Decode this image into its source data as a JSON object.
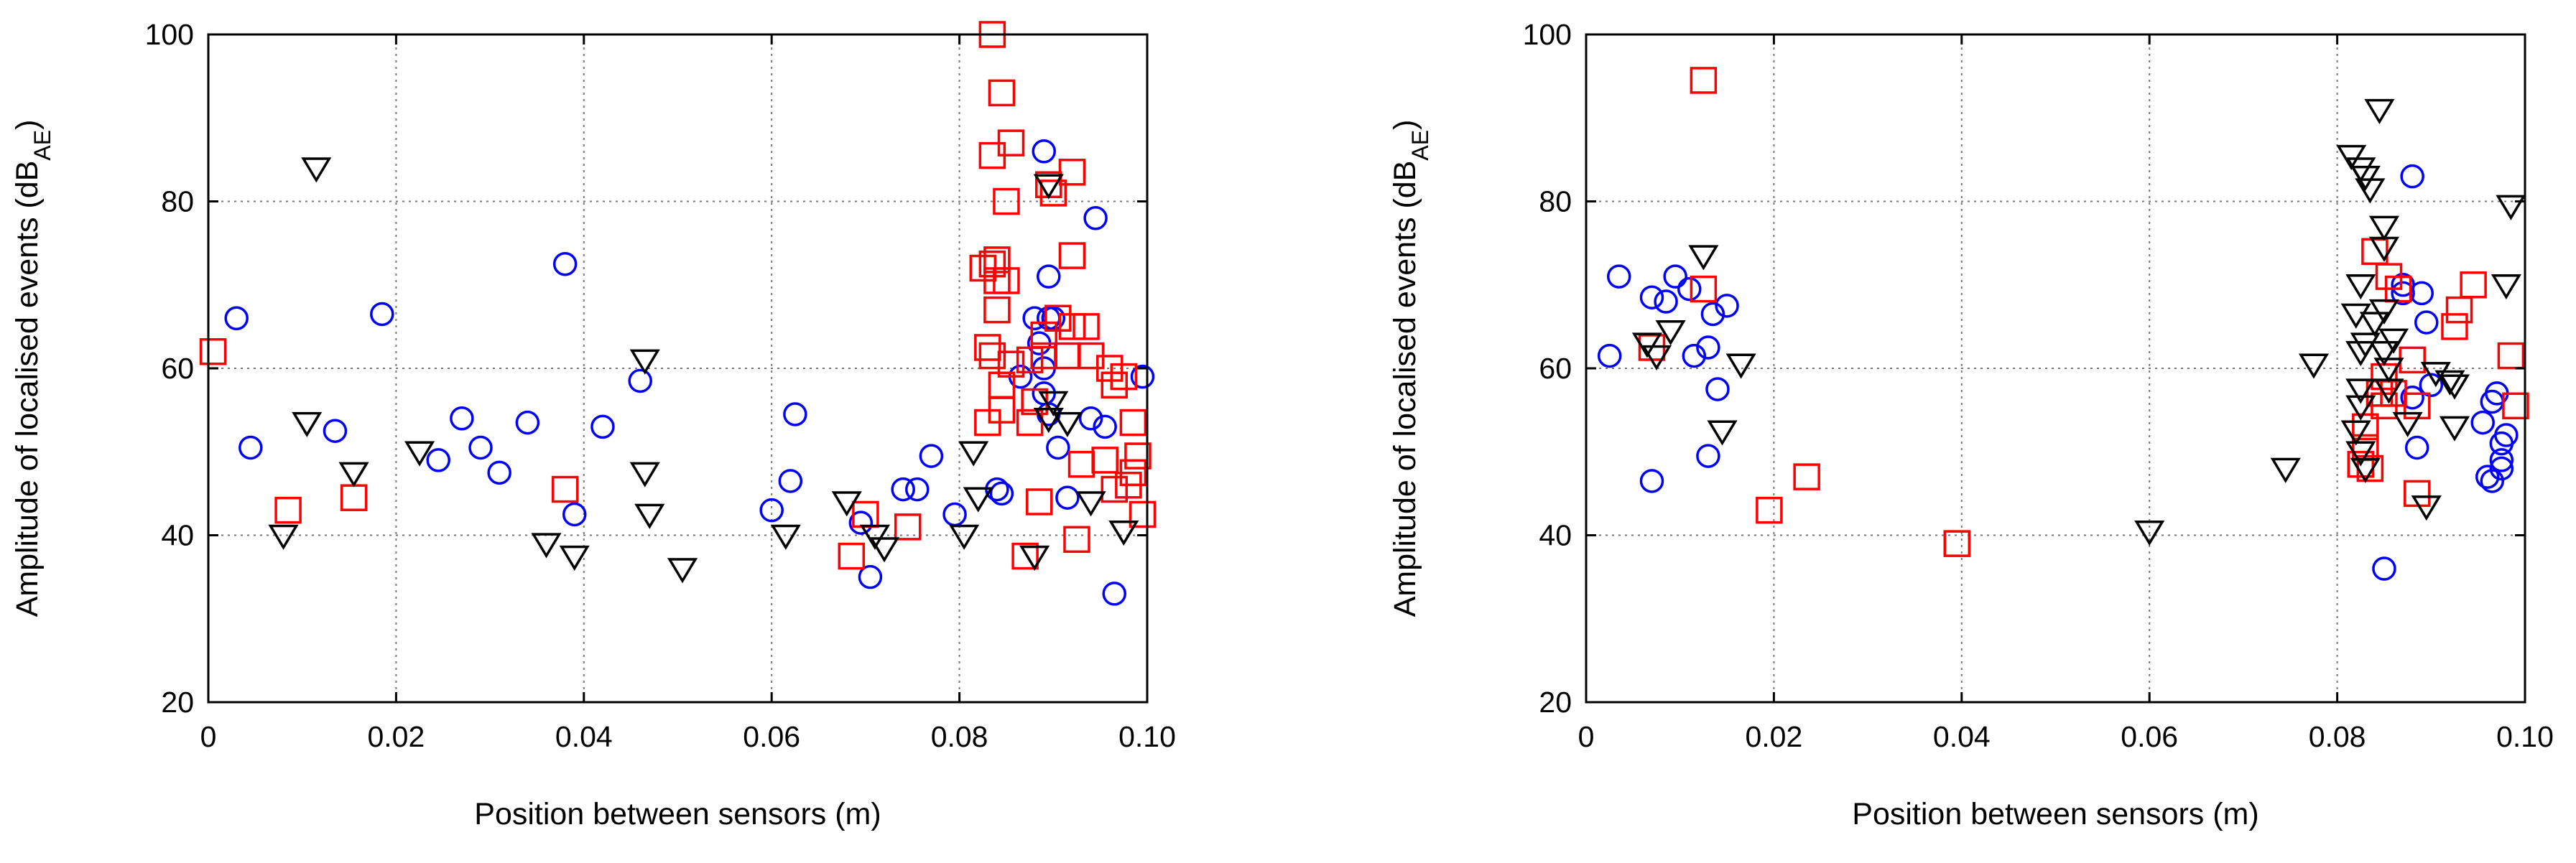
{
  "chart_data": [
    {
      "type": "scatter",
      "title": "",
      "xlabel": "Position between sensors (m)",
      "ylabel": {
        "main": "Amplitude of localised events (dB",
        "sub": "AE",
        "close": ")"
      },
      "xlim": [
        0,
        0.1
      ],
      "ylim": [
        20,
        100
      ],
      "xticks": [
        0,
        0.02,
        0.04,
        0.06,
        0.08,
        0.1
      ],
      "xtick_labels": [
        "0",
        "0.02",
        "0.04",
        "0.06",
        "0.08",
        "0.10"
      ],
      "yticks": [
        20,
        40,
        60,
        80,
        100
      ],
      "ytick_labels": [
        "20",
        "40",
        "60",
        "80",
        "100"
      ],
      "grid": true,
      "series": [
        {
          "name": "circles",
          "marker": "circle",
          "color": "#0000ff",
          "points": [
            [
              0.003,
              66
            ],
            [
              0.0045,
              50.5
            ],
            [
              0.0135,
              52.5
            ],
            [
              0.0185,
              66.5
            ],
            [
              0.0245,
              49
            ],
            [
              0.027,
              54
            ],
            [
              0.029,
              50.5
            ],
            [
              0.031,
              47.5
            ],
            [
              0.034,
              53.5
            ],
            [
              0.038,
              72.5
            ],
            [
              0.039,
              42.5
            ],
            [
              0.042,
              53
            ],
            [
              0.046,
              58.5
            ],
            [
              0.06,
              43
            ],
            [
              0.062,
              46.5
            ],
            [
              0.0625,
              54.5
            ],
            [
              0.0695,
              41.5
            ],
            [
              0.0705,
              35
            ],
            [
              0.074,
              45.5
            ],
            [
              0.0755,
              45.5
            ],
            [
              0.077,
              49.5
            ],
            [
              0.0795,
              42.5
            ],
            [
              0.084,
              45.5
            ],
            [
              0.0845,
              45
            ],
            [
              0.0865,
              59
            ],
            [
              0.088,
              66
            ],
            [
              0.0885,
              63
            ],
            [
              0.089,
              86
            ],
            [
              0.0895,
              71
            ],
            [
              0.0895,
              66
            ],
            [
              0.089,
              60
            ],
            [
              0.089,
              57
            ],
            [
              0.0895,
              54.5
            ],
            [
              0.09,
              66
            ],
            [
              0.0905,
              50.5
            ],
            [
              0.0915,
              44.5
            ],
            [
              0.094,
              54
            ],
            [
              0.0945,
              78
            ],
            [
              0.0955,
              53
            ],
            [
              0.0965,
              33
            ],
            [
              0.0995,
              59
            ]
          ]
        },
        {
          "name": "squares",
          "marker": "square",
          "color": "#ff0000",
          "points": [
            [
              0.0005,
              62
            ],
            [
              0.0085,
              43
            ],
            [
              0.0155,
              44.5
            ],
            [
              0.038,
              45.5
            ],
            [
              0.0685,
              37.5
            ],
            [
              0.07,
              42.5
            ],
            [
              0.0745,
              41
            ],
            [
              0.0825,
              72
            ],
            [
              0.083,
              62.5
            ],
            [
              0.083,
              53.5
            ],
            [
              0.0835,
              100
            ],
            [
              0.0835,
              85.5
            ],
            [
              0.0835,
              72.5
            ],
            [
              0.0835,
              61.5
            ],
            [
              0.084,
              73
            ],
            [
              0.084,
              70.5
            ],
            [
              0.084,
              67
            ],
            [
              0.0845,
              93
            ],
            [
              0.0845,
              58
            ],
            [
              0.0845,
              55
            ],
            [
              0.085,
              80
            ],
            [
              0.085,
              70.5
            ],
            [
              0.0855,
              87
            ],
            [
              0.0855,
              60.5
            ],
            [
              0.087,
              37.5
            ],
            [
              0.0875,
              61
            ],
            [
              0.0875,
              53.5
            ],
            [
              0.088,
              56
            ],
            [
              0.0885,
              44
            ],
            [
              0.089,
              61.5
            ],
            [
              0.089,
              64
            ],
            [
              0.0895,
              82
            ],
            [
              0.09,
              81
            ],
            [
              0.0905,
              66
            ],
            [
              0.0915,
              61.5
            ],
            [
              0.092,
              83.5
            ],
            [
              0.092,
              73.5
            ],
            [
              0.092,
              65
            ],
            [
              0.0925,
              39.5
            ],
            [
              0.093,
              48.5
            ],
            [
              0.0935,
              65
            ],
            [
              0.094,
              61.5
            ],
            [
              0.0955,
              49
            ],
            [
              0.096,
              60
            ],
            [
              0.0965,
              58
            ],
            [
              0.0965,
              45.5
            ],
            [
              0.0975,
              59
            ],
            [
              0.098,
              46
            ],
            [
              0.0985,
              53.5
            ],
            [
              0.0985,
              47.5
            ],
            [
              0.099,
              49.5
            ],
            [
              0.0995,
              42.5
            ]
          ]
        },
        {
          "name": "triangles",
          "marker": "triangle",
          "color": "#000000",
          "points": [
            [
              0.008,
              40
            ],
            [
              0.0105,
              53.5
            ],
            [
              0.0115,
              84
            ],
            [
              0.0155,
              47.5
            ],
            [
              0.0225,
              50
            ],
            [
              0.036,
              39
            ],
            [
              0.039,
              37.5
            ],
            [
              0.0465,
              61
            ],
            [
              0.0465,
              47.5
            ],
            [
              0.047,
              42.5
            ],
            [
              0.0505,
              36
            ],
            [
              0.0615,
              40
            ],
            [
              0.068,
              44
            ],
            [
              0.071,
              40
            ],
            [
              0.072,
              38.5
            ],
            [
              0.0805,
              40
            ],
            [
              0.0815,
              50
            ],
            [
              0.082,
              44.5
            ],
            [
              0.088,
              37.5
            ],
            [
              0.0895,
              82
            ],
            [
              0.0895,
              54
            ],
            [
              0.09,
              56
            ],
            [
              0.0915,
              53.5
            ],
            [
              0.094,
              44
            ],
            [
              0.0975,
              40.5
            ]
          ]
        }
      ]
    },
    {
      "type": "scatter",
      "title": "",
      "xlabel": "Position between sensors (m)",
      "ylabel": {
        "main": "Amplitude of localised events (dB",
        "sub": "AE",
        "close": ")"
      },
      "xlim": [
        0,
        0.1
      ],
      "ylim": [
        20,
        100
      ],
      "xticks": [
        0,
        0.02,
        0.04,
        0.06,
        0.08,
        0.1
      ],
      "xtick_labels": [
        "0",
        "0.02",
        "0.04",
        "0.06",
        "0.08",
        "0.10"
      ],
      "yticks": [
        20,
        40,
        60,
        80,
        100
      ],
      "ytick_labels": [
        "20",
        "40",
        "60",
        "80",
        "100"
      ],
      "grid": true,
      "series": [
        {
          "name": "circles",
          "marker": "circle",
          "color": "#0000ff",
          "points": [
            [
              0.0025,
              61.5
            ],
            [
              0.0035,
              71
            ],
            [
              0.007,
              46.5
            ],
            [
              0.007,
              68.5
            ],
            [
              0.0085,
              68
            ],
            [
              0.0095,
              71
            ],
            [
              0.011,
              69.5
            ],
            [
              0.0115,
              61.5
            ],
            [
              0.013,
              49.5
            ],
            [
              0.013,
              62.5
            ],
            [
              0.0135,
              66.5
            ],
            [
              0.014,
              57.5
            ],
            [
              0.015,
              67.5
            ],
            [
              0.085,
              36
            ],
            [
              0.087,
              70
            ],
            [
              0.087,
              69
            ],
            [
              0.088,
              56.5
            ],
            [
              0.088,
              83
            ],
            [
              0.0885,
              50.5
            ],
            [
              0.089,
              69
            ],
            [
              0.0895,
              65.5
            ],
            [
              0.09,
              58
            ],
            [
              0.0955,
              53.5
            ],
            [
              0.096,
              47
            ],
            [
              0.0965,
              56
            ],
            [
              0.097,
              57
            ],
            [
              0.0975,
              51
            ],
            [
              0.0975,
              49
            ],
            [
              0.098,
              52
            ],
            [
              0.0975,
              48
            ],
            [
              0.0965,
              46.5
            ]
          ]
        },
        {
          "name": "squares",
          "marker": "square",
          "color": "#ff0000",
          "points": [
            [
              0.007,
              62.5
            ],
            [
              0.0125,
              69.5
            ],
            [
              0.0125,
              94.5
            ],
            [
              0.0195,
              43
            ],
            [
              0.0235,
              47
            ],
            [
              0.0395,
              39
            ],
            [
              0.0825,
              48.5
            ],
            [
              0.083,
              50.5
            ],
            [
              0.083,
              53
            ],
            [
              0.0835,
              48
            ],
            [
              0.084,
              74
            ],
            [
              0.0845,
              57
            ],
            [
              0.085,
              55.5
            ],
            [
              0.085,
              59
            ],
            [
              0.0855,
              71
            ],
            [
              0.086,
              57
            ],
            [
              0.0865,
              69.5
            ],
            [
              0.088,
              61
            ],
            [
              0.0885,
              55.5
            ],
            [
              0.0885,
              45
            ],
            [
              0.0925,
              65
            ],
            [
              0.093,
              67
            ],
            [
              0.0945,
              70
            ],
            [
              0.0985,
              61.5
            ],
            [
              0.099,
              55.5
            ]
          ]
        },
        {
          "name": "triangles",
          "marker": "triangle",
          "color": "#000000",
          "points": [
            [
              0.0065,
              63
            ],
            [
              0.0075,
              61.5
            ],
            [
              0.009,
              64.5
            ],
            [
              0.0125,
              73.5
            ],
            [
              0.0145,
              52.5
            ],
            [
              0.0165,
              60.5
            ],
            [
              0.06,
              40.5
            ],
            [
              0.0745,
              48
            ],
            [
              0.0775,
              60.5
            ],
            [
              0.0815,
              85.5
            ],
            [
              0.082,
              66.5
            ],
            [
              0.082,
              52.5
            ],
            [
              0.0825,
              84
            ],
            [
              0.0825,
              70
            ],
            [
              0.0825,
              62
            ],
            [
              0.0825,
              57.5
            ],
            [
              0.0825,
              55.5
            ],
            [
              0.0825,
              50
            ],
            [
              0.083,
              83
            ],
            [
              0.083,
              63
            ],
            [
              0.083,
              48
            ],
            [
              0.0835,
              81.5
            ],
            [
              0.084,
              65.5
            ],
            [
              0.0845,
              91
            ],
            [
              0.085,
              77
            ],
            [
              0.085,
              74.5
            ],
            [
              0.085,
              67
            ],
            [
              0.085,
              62
            ],
            [
              0.0855,
              60
            ],
            [
              0.0855,
              57.5
            ],
            [
              0.086,
              63.5
            ],
            [
              0.0875,
              53.5
            ],
            [
              0.0895,
              43.5
            ],
            [
              0.0905,
              59.5
            ],
            [
              0.092,
              58.5
            ],
            [
              0.0925,
              58
            ],
            [
              0.0925,
              53
            ],
            [
              0.098,
              70
            ],
            [
              0.0985,
              79.5
            ]
          ]
        }
      ]
    }
  ]
}
